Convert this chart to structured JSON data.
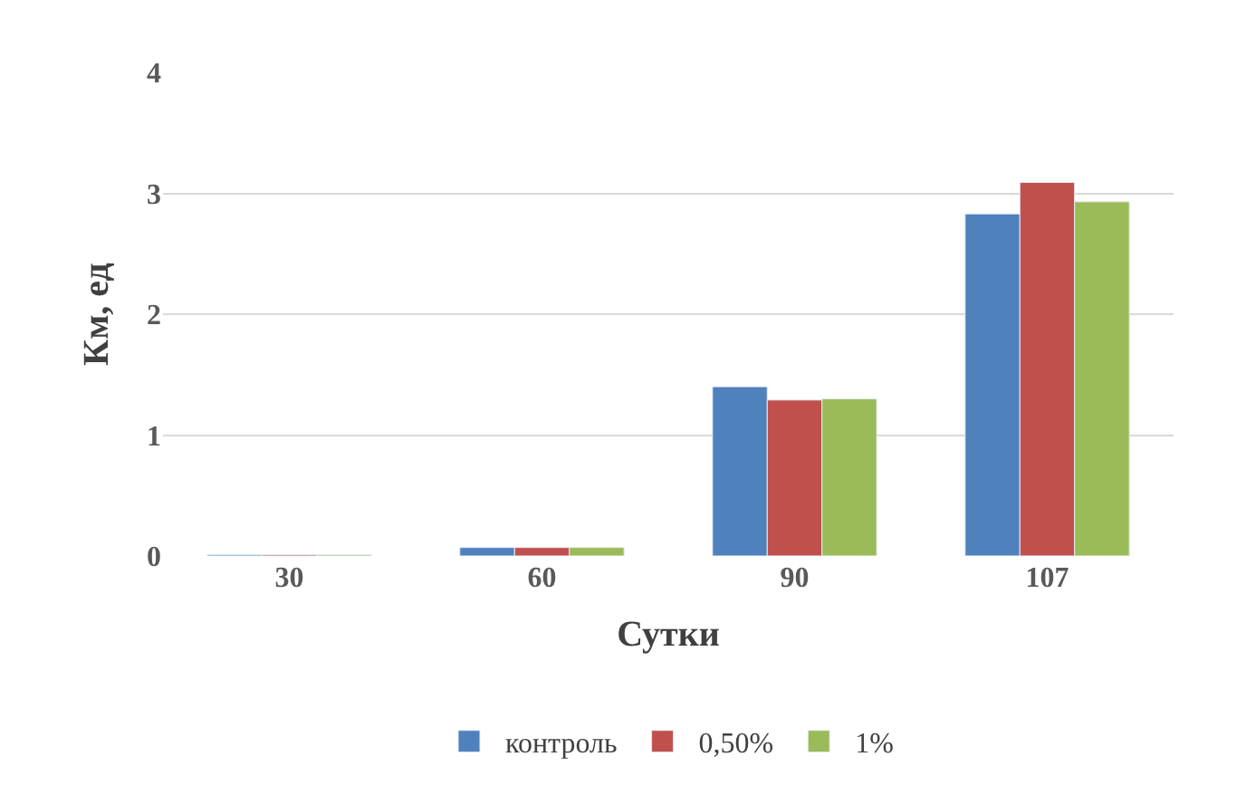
{
  "chart_data": {
    "type": "bar",
    "xlabel": "Сутки",
    "ylabel": "Км, ед",
    "categories": [
      "30",
      "60",
      "90",
      "107"
    ],
    "series": [
      {
        "name": "контроль",
        "color": "#4f81bd",
        "values": [
          0.01,
          0.07,
          1.4,
          2.83
        ]
      },
      {
        "name": "0,50%",
        "color": "#c0504d",
        "values": [
          0.01,
          0.07,
          1.29,
          3.09
        ]
      },
      {
        "name": "1%",
        "color": "#9bbb59",
        "values": [
          0.01,
          0.07,
          1.3,
          2.93
        ]
      }
    ],
    "ylim": [
      0,
      4
    ],
    "yticks": [
      0,
      1,
      2,
      3,
      4
    ],
    "grid": "y",
    "legend": "bottom"
  }
}
